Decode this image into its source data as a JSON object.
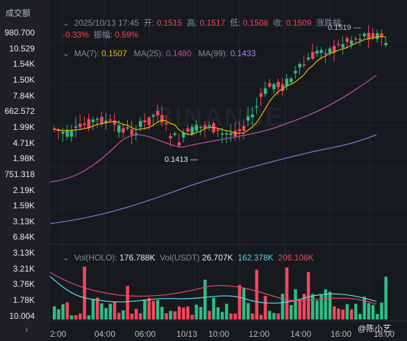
{
  "left_panel": {
    "header": "成交额",
    "values": [
      "980.700",
      "10.529",
      "1.54K",
      "1.50K",
      "7.84K",
      "662.572",
      "1.99K",
      "4.71K",
      "1.98K",
      "751.318",
      "2.19K",
      "1.59K",
      "3.13K",
      "6.84K",
      "3.13K",
      "3.21K",
      "3.76K",
      "1.78K",
      "10.004"
    ],
    "expand_icon": "chevron-right-icon"
  },
  "ohlc": {
    "datetime": "2025/10/13 17:45",
    "open_label": "开:",
    "open": "0.1515",
    "high_label": "高:",
    "high": "0.1517",
    "low_label": "低:",
    "low": "0.1508",
    "close_label": "收:",
    "close": "0.1509",
    "change_label": "涨跌幅:",
    "change": "-0.33%",
    "amplitude_label": "振幅:",
    "amplitude": "0.59%"
  },
  "ma": {
    "ma7_label": "MA(7):",
    "ma7": "0.1507",
    "ma25_label": "MA(25):",
    "ma25": "0.1480",
    "ma99_label": "MA(99):",
    "ma99": "0.1433"
  },
  "annotations": {
    "high_marker": "0.1519",
    "low_marker": "0.1413"
  },
  "volume": {
    "holo_label": "Vol(HOLO):",
    "holo": "176.788K",
    "usdt_label": "Vol(USDT)",
    "usdt": "26.707K",
    "ma1": "162.378K",
    "ma2": "206.106K"
  },
  "time_axis": [
    "2:00",
    "04:00",
    "06:00",
    "10/13",
    "10:00",
    "12:00",
    "14:00",
    "16:00",
    "18:00"
  ],
  "watermark_user": "@陈小艺",
  "watermark_brand": "BINANCE",
  "colors": {
    "up": "#2ebd85",
    "down": "#f6465d",
    "ma7": "#f0b90b",
    "ma25": "#c04fa1",
    "ma99": "#8e6fd6",
    "vol_ma1": "#5fd4e6",
    "vol_ma2": "#e2456a"
  }
}
